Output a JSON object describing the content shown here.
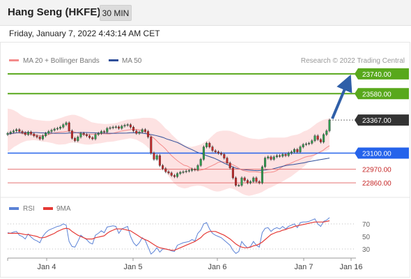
{
  "header": {
    "instrument": "Hang Seng (HKFE)",
    "timeframe": "30 MIN",
    "datetime": "Friday, January 7, 2022 4:43:14 AM CET"
  },
  "colors": {
    "up_candle": "#2e9e4f",
    "down_candle": "#c62828",
    "resistance": "#58a81c",
    "support": "#2563eb",
    "level_line": "#e57373",
    "ma20": "#f48b8b",
    "ma50": "#2f4f9a",
    "bollinger_fill": "#fde2e2",
    "rsi": "#5b82d6",
    "rsi_ma": "#e53935",
    "arrow": "#2f5fa8",
    "current_price_tag": "#333333"
  },
  "chart_data": [
    {
      "type": "candlestick",
      "legend": [
        {
          "label": "MA 20 + Bollinger Bands",
          "color": "#f48b8b"
        },
        {
          "label": "MA 50",
          "color": "#2f4f9a"
        }
      ],
      "watermark": "Research © 2022 Trading Central",
      "x_ticks": [
        "Jan 4",
        "Jan 5",
        "Jan 6",
        "Jan 7",
        "Jan 16"
      ],
      "ylim": [
        22720,
        23790
      ],
      "levels": [
        {
          "value": 23740.0,
          "label": "23740.00",
          "kind": "resistance"
        },
        {
          "value": 23580.0,
          "label": "23580.00",
          "kind": "resistance"
        },
        {
          "value": 23367.0,
          "label": "23367.00",
          "kind": "current"
        },
        {
          "value": 23100.0,
          "label": "23100.00",
          "kind": "pivot"
        },
        {
          "value": 22970.0,
          "label": "22970.00",
          "kind": "support"
        },
        {
          "value": 22860.0,
          "label": "22860.00",
          "kind": "support"
        }
      ],
      "close": [
        23260,
        23270,
        23280,
        23290,
        23275,
        23265,
        23250,
        23270,
        23255,
        23240,
        23230,
        23215,
        23240,
        23260,
        23275,
        23285,
        23295,
        23300,
        23310,
        23330,
        23345,
        23280,
        23220,
        23200,
        23230,
        23260,
        23250,
        23240,
        23225,
        23215,
        23250,
        23260,
        23275,
        23270,
        23300,
        23305,
        23310,
        23312,
        23300,
        23318,
        23325,
        23330,
        23310,
        23280,
        23260,
        23270,
        23290,
        23275,
        23230,
        23100,
        23050,
        23080,
        23000,
        22975,
        22950,
        22940,
        22920,
        22910,
        22935,
        22945,
        22950,
        22955,
        22960,
        22970,
        22965,
        23000,
        23050,
        23150,
        23180,
        23150,
        23120,
        23110,
        23100,
        23090,
        23060,
        23020,
        22980,
        22900,
        22840,
        22840,
        22900,
        22880,
        22860,
        22870,
        22900,
        22870,
        22860,
        22990,
        23060,
        23070,
        23050,
        23070,
        23080,
        23075,
        23090,
        23080,
        23100,
        23110,
        23130,
        23110,
        23150,
        23170,
        23175,
        23180,
        23200,
        23240,
        23210,
        23190,
        23250,
        23280,
        23367
      ],
      "ma20": [
        23252,
        23256,
        23260,
        23265,
        23262,
        23258,
        23254,
        23250,
        23248,
        23246,
        23243,
        23239,
        23243,
        23249,
        23256,
        23262,
        23268,
        23270,
        23272,
        23275,
        23279,
        23275,
        23268,
        23260,
        23254,
        23250,
        23251,
        23252,
        23253,
        23254,
        23256,
        23256,
        23255,
        23255,
        23260,
        23266,
        23273,
        23279,
        23283,
        23287,
        23291,
        23292,
        23290,
        23286,
        23276,
        23262,
        23244,
        23226,
        23204,
        23178,
        23158,
        23134,
        23105,
        23079,
        23056,
        23036,
        23018,
        23002,
        22996,
        22982,
        22970,
        22963,
        22960,
        22966,
        22975,
        22987,
        22998,
        23010,
        23025,
        23030,
        23028,
        23024,
        23015,
        23003,
        22990,
        22973,
        22960,
        22955,
        22950,
        22950,
        22950,
        22947,
        22943,
        22940,
        22945,
        22946,
        22949,
        22960,
        22977,
        22993,
        23007,
        23014,
        23024,
        23036,
        23045,
        23056,
        23067,
        23073,
        23077,
        23085,
        23096,
        23110,
        23124,
        23144,
        23160
      ],
      "ma50": [
        23254,
        23258,
        23262,
        23265,
        23265,
        23266,
        23266,
        23266,
        23266,
        23264,
        23263,
        23262,
        23262,
        23260,
        23260,
        23260,
        23260,
        23262,
        23264,
        23265,
        23266,
        23266,
        23266,
        23265,
        23264,
        23262,
        23261,
        23261,
        23260,
        23260,
        23260,
        23261,
        23261,
        23262,
        23264,
        23265,
        23264,
        23262,
        23258,
        23253,
        23248,
        23242,
        23235,
        23226,
        23214,
        23205,
        23195,
        23185,
        23170,
        23154,
        23140,
        23128,
        23113,
        23100,
        23092,
        23080,
        23070,
        23060,
        23047,
        23032,
        23017,
        23004,
        22992,
        22980,
        22972,
        22968,
        22965,
        22962,
        22960,
        22959,
        22960,
        22963,
        22967,
        22970,
        22978,
        22985,
        22993,
        23000,
        23005,
        23008,
        23013,
        23018,
        23022,
        23030,
        23035,
        23040,
        23045,
        23050,
        23055,
        23060
      ],
      "bollinger_upper": [
        23460,
        23455,
        23445,
        23430,
        23410,
        23395,
        23385,
        23380,
        23372,
        23368,
        23365,
        23362,
        23360,
        23360,
        23365,
        23372,
        23380,
        23388,
        23398,
        23405,
        23410,
        23408,
        23400,
        23390,
        23378,
        23365,
        23350,
        23345,
        23340,
        23338,
        23335,
        23335,
        23338,
        23340,
        23345,
        23355,
        23362,
        23370,
        23372,
        23375,
        23378,
        23380,
        23385,
        23385,
        23385,
        23382,
        23375,
        23355,
        23330,
        23300,
        23280,
        23250,
        23225,
        23200,
        23180,
        23165,
        23155,
        23150,
        23155,
        23162,
        23170,
        23185,
        23200,
        23225,
        23250,
        23270,
        23278,
        23282,
        23282,
        23280,
        23272,
        23262,
        23250,
        23240,
        23230,
        23222,
        23217,
        23215,
        23212,
        23215,
        23220,
        23225,
        23225,
        23225,
        23225,
        23225,
        23225,
        23230,
        23240,
        23245,
        23250,
        23260,
        23275,
        23285,
        23300,
        23320,
        23340,
        23355,
        23368,
        23375,
        23380
      ],
      "bollinger_lower": [
        23110,
        23130,
        23150,
        23165,
        23180,
        23192,
        23200,
        23202,
        23205,
        23203,
        23198,
        23192,
        23190,
        23185,
        23180,
        23172,
        23168,
        23170,
        23172,
        23180,
        23185,
        23185,
        23180,
        23175,
        23170,
        23168,
        23170,
        23175,
        23178,
        23180,
        23185,
        23190,
        23192,
        23195,
        23200,
        23205,
        23210,
        23215,
        23220,
        23215,
        23208,
        23195,
        23180,
        23160,
        23135,
        23110,
        23080,
        23040,
        22995,
        22950,
        22915,
        22880,
        22850,
        22830,
        22820,
        22815,
        22820,
        22830,
        22835,
        22838,
        22836,
        22830,
        22818,
        22805,
        22795,
        22790,
        22792,
        22800,
        22810,
        22818,
        22812,
        22800,
        22785,
        22770,
        22760,
        22755,
        22760,
        22768,
        22775,
        22785,
        22800,
        22815,
        22825,
        22838,
        22852,
        22865,
        22880,
        22895,
        22910,
        22930,
        22950,
        22968,
        22990,
        23015,
        23040,
        23070,
        23090,
        23100,
        23110,
        23120,
        23130
      ]
    },
    {
      "type": "line",
      "legend": [
        {
          "label": "RSI",
          "color": "#5b82d6"
        },
        {
          "label": "9MA",
          "color": "#e53935"
        }
      ],
      "y_ticks": [
        "70",
        "50",
        "30"
      ],
      "ylim": [
        20,
        80
      ],
      "series": [
        {
          "name": "RSI",
          "values": [
            56,
            55,
            57,
            58,
            52,
            50,
            46,
            54,
            49,
            45,
            43,
            40,
            50,
            56,
            60,
            62,
            64,
            66,
            67,
            70,
            68,
            42,
            34,
            33,
            42,
            52,
            48,
            45,
            40,
            38,
            52,
            55,
            59,
            56,
            65,
            66,
            67,
            66,
            55,
            62,
            64,
            66,
            50,
            40,
            35,
            40,
            48,
            44,
            33,
            22,
            26,
            32,
            25,
            30,
            30,
            29,
            27,
            26,
            36,
            38,
            40,
            41,
            42,
            45,
            43,
            55,
            60,
            70,
            72,
            62,
            55,
            52,
            50,
            48,
            44,
            40,
            36,
            28,
            23,
            26,
            42,
            36,
            32,
            34,
            42,
            36,
            33,
            56,
            63,
            64,
            58,
            62,
            64,
            62,
            66,
            62,
            66,
            68,
            70,
            64,
            72,
            73,
            73,
            74,
            76,
            78,
            70,
            66,
            74,
            76,
            80
          ]
        },
        {
          "name": "9MA",
          "values": [
            55,
            55,
            55,
            55,
            55,
            54,
            53,
            53,
            52,
            51,
            50,
            48,
            48,
            49,
            51,
            53,
            55,
            58,
            60,
            62,
            63,
            62,
            58,
            55,
            52,
            50,
            48,
            46,
            46,
            46,
            48,
            49,
            50,
            51,
            55,
            58,
            60,
            62,
            62,
            62,
            61,
            60,
            59,
            56,
            53,
            50,
            47,
            45,
            43,
            40,
            37,
            34,
            32,
            31,
            30,
            29,
            28,
            28,
            30,
            32,
            34,
            36,
            38,
            40,
            42,
            45,
            48,
            53,
            56,
            58,
            58,
            58,
            56,
            54,
            52,
            49,
            46,
            42,
            38,
            35,
            33,
            32,
            32,
            33,
            35,
            36,
            38,
            41,
            45,
            49,
            53,
            55,
            57,
            58,
            60,
            61,
            63,
            64,
            66,
            67,
            68,
            69,
            70,
            71,
            72,
            73,
            73,
            73,
            73,
            74,
            75
          ]
        }
      ]
    }
  ]
}
